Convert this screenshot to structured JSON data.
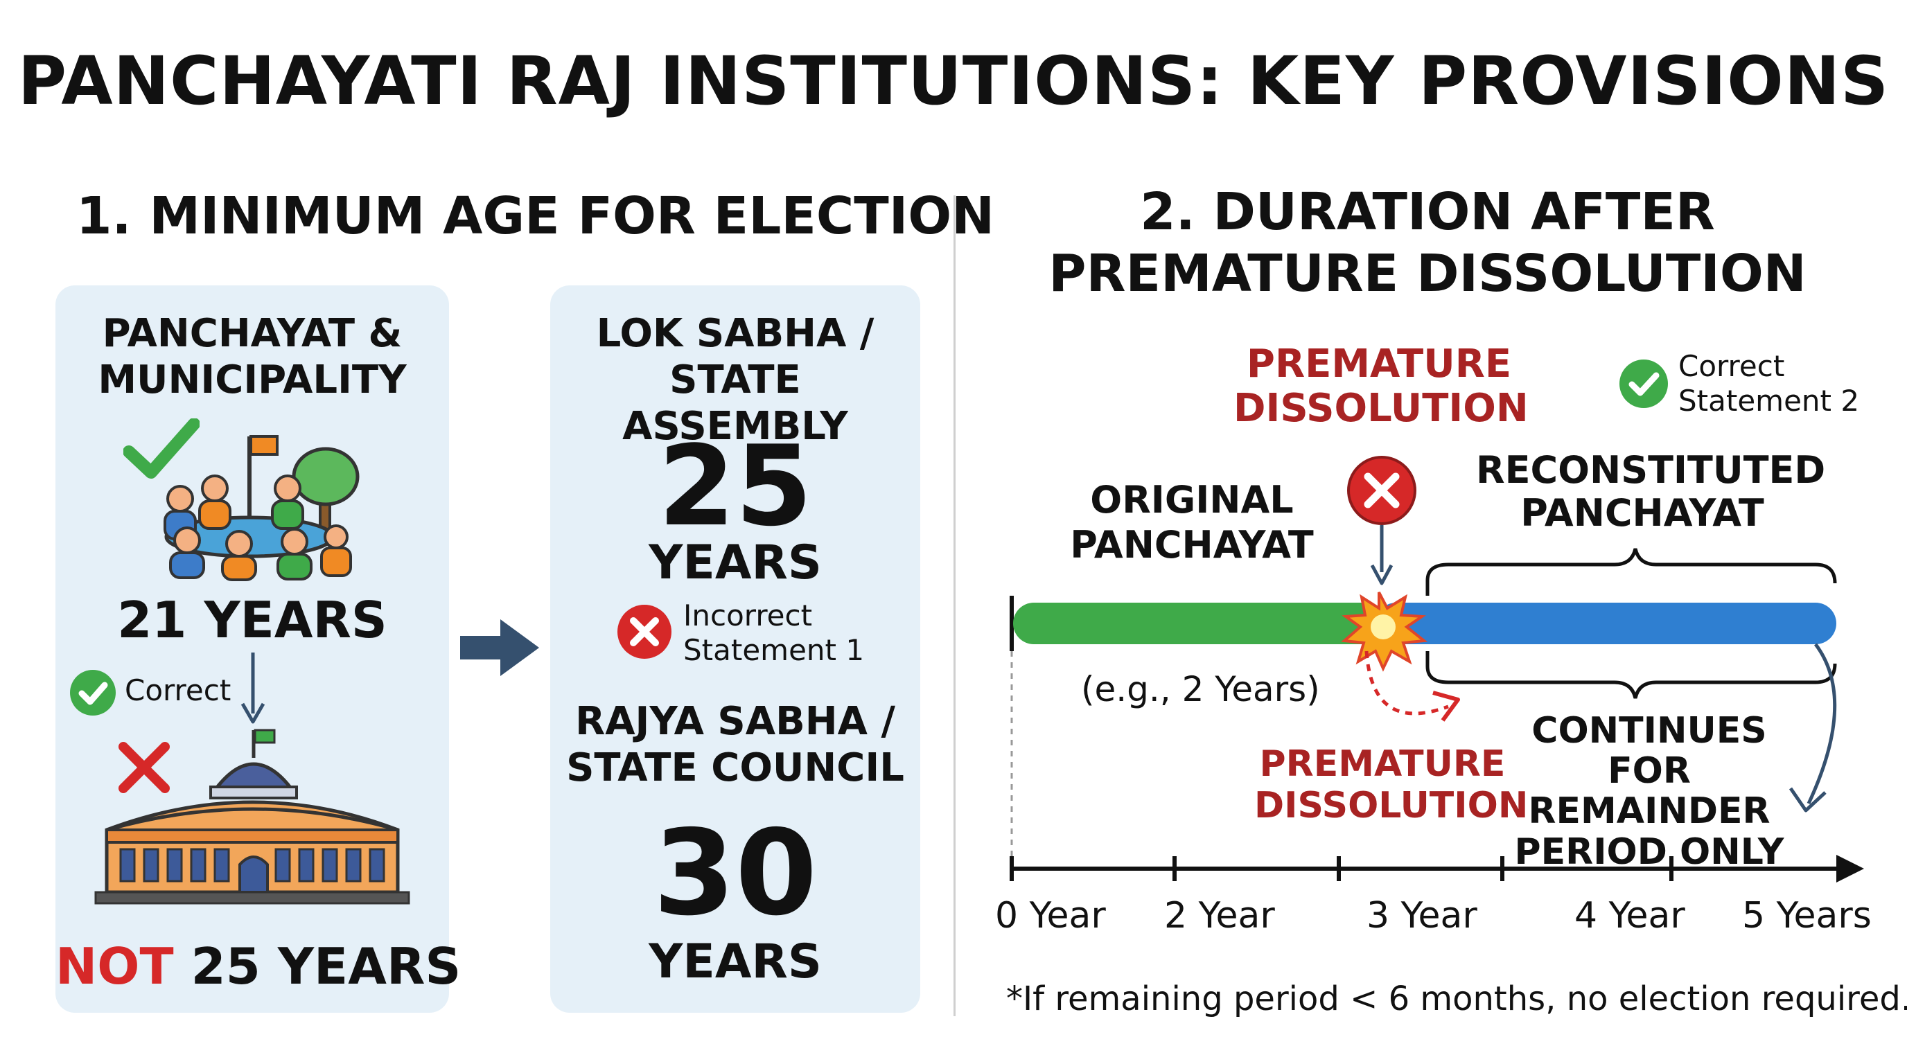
{
  "title": "PANCHAYATI RAJ INSTITUTIONS: KEY PROVISIONS",
  "section1": {
    "heading": "1. MINIMUM AGE FOR ELECTION",
    "panchayat_card": {
      "heading_line1": "PANCHAYAT &",
      "heading_line2": "MUNICIPALITY",
      "age": "21 YEARS",
      "correct_label": "Correct",
      "not_word": "NOT",
      "not_rest": " 25 YEARS"
    },
    "parliament_card": {
      "lok_line1": "LOK SABHA /",
      "lok_line2": "STATE ASSEMBLY",
      "lok_age_number": "25",
      "lok_age_unit": "YEARS",
      "incorrect_line1": "Incorrect",
      "incorrect_line2": "Statement 1",
      "rajya_line1": "RAJYA SABHA /",
      "rajya_line2": "STATE COUNCIL",
      "rajya_age_number": "30",
      "rajya_age_unit": "YEARS"
    }
  },
  "section2": {
    "heading_line1": "2. DURATION AFTER",
    "heading_line2": "PREMATURE DISSOLUTION",
    "premature_top_line1": "PREMATURE",
    "premature_top_line2": "DISSOLUTION",
    "correct_line1": "Correct",
    "correct_line2": "Statement 2",
    "original_line1": "ORIGINAL",
    "original_line2": "PANCHAYAT",
    "example": "(e.g., 2 Years)",
    "reconstituted_line1": "RECONSTITUTED",
    "reconstituted_line2": "PANCHAYAT",
    "premature_bottom_line1": "PREMATURE",
    "premature_bottom_line2": "DISSOLUTION",
    "continues_line1": "CONTINUES FOR",
    "continues_line2": "REMAINDER",
    "continues_line3": "PERIOD ONLY",
    "axis_ticks": [
      "0 Year",
      "2 Year",
      "3 Year",
      "4 Year",
      "5 Years"
    ],
    "footnote": "*If remaining period < 6 months, no election required."
  },
  "colors": {
    "green": "#3faa49",
    "blue": "#2f7fd1",
    "red": "#d62828",
    "dark_red": "#a82323",
    "card_bg": "#e5f0f8",
    "arrow": "#35506e"
  }
}
